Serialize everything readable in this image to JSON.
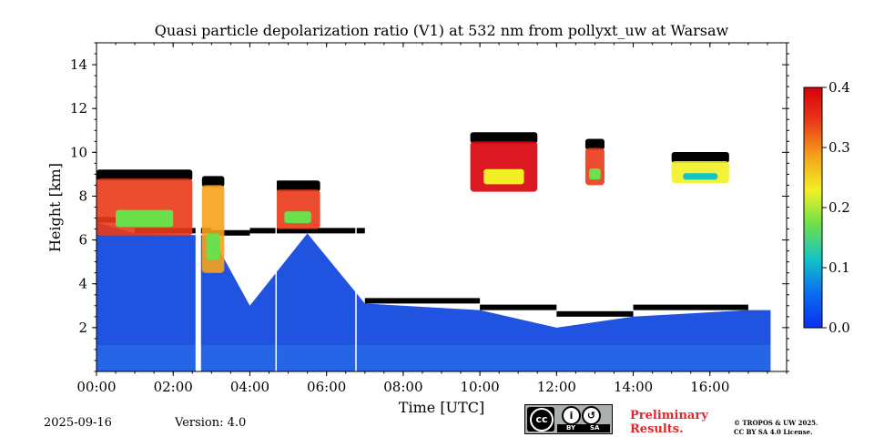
{
  "footer": {
    "date": "2025-09-16",
    "version": "Version: 4.0",
    "license_badge": {
      "by": "BY",
      "sa": "SA"
    },
    "preliminary_line1": "Preliminary",
    "preliminary_line2": "Results.",
    "copyright_line1": "© TROPOS & UW 2025.",
    "copyright_line2": "CC BY SA 4.0 License."
  },
  "chart_data": {
    "type": "heatmap",
    "title": "Quasi particle depolarization ratio (V1) at 532 nm from pollyxt_uw at Warsaw",
    "xlabel": "Time [UTC]",
    "ylabel": "Height [km]",
    "xlim": [
      "00:00",
      "18:00"
    ],
    "ylim": [
      0,
      15
    ],
    "x_ticks": [
      "00:00",
      "02:00",
      "04:00",
      "06:00",
      "08:00",
      "10:00",
      "12:00",
      "14:00",
      "16:00"
    ],
    "y_ticks": [
      2,
      4,
      6,
      8,
      10,
      12,
      14
    ],
    "colorbar": {
      "range": [
        0.0,
        0.4
      ],
      "ticks": [
        "0.0",
        "0.1",
        "0.2",
        "0.3",
        "0.4"
      ],
      "colors": [
        "#0b2ff0",
        "#0a6cf0",
        "#12c4c8",
        "#6be04a",
        "#f2f024",
        "#f5a21c",
        "#ea3a18",
        "#d8000b"
      ]
    },
    "colors": {
      "background_low": "#1f53e0",
      "boundary_layer": "#2b73ea",
      "no_signal": "#ffffff",
      "cloud_masked": "#000000"
    },
    "gaps_utc": [
      "02:35",
      "04:40",
      "06:45"
    ],
    "features": [
      {
        "type": "boundary_layer_top",
        "time": "00:00",
        "height_km": 6.8
      },
      {
        "type": "boundary_layer_top",
        "time": "01:00",
        "height_km": 6.3
      },
      {
        "type": "boundary_layer_top",
        "time": "03:00",
        "height_km": 6.2
      },
      {
        "type": "boundary_layer_top",
        "time": "04:00",
        "height_km": 3.0
      },
      {
        "type": "boundary_layer_top",
        "time": "05:30",
        "height_km": 6.3
      },
      {
        "type": "boundary_layer_top",
        "time": "07:00",
        "height_km": 3.1
      },
      {
        "type": "boundary_layer_top",
        "time": "10:00",
        "height_km": 2.8
      },
      {
        "type": "boundary_layer_top",
        "time": "12:00",
        "height_km": 2.0
      },
      {
        "type": "boundary_layer_top",
        "time": "14:00",
        "height_km": 2.5
      },
      {
        "type": "boundary_layer_top",
        "time": "17:00",
        "height_km": 2.8
      },
      {
        "type": "high_depol_layer",
        "time_start": "00:00",
        "time_end": "02:30",
        "height_km": [
          6.2,
          8.8
        ],
        "value": 0.35
      },
      {
        "type": "high_depol_layer",
        "time_start": "02:45",
        "time_end": "03:20",
        "height_km": [
          4.5,
          8.5
        ],
        "value": 0.3
      },
      {
        "type": "high_depol_layer",
        "time_start": "04:40",
        "time_end": "05:50",
        "height_km": [
          6.5,
          8.3
        ],
        "value": 0.35
      },
      {
        "type": "high_depol_layer",
        "time_start": "09:45",
        "time_end": "11:30",
        "height_km": [
          8.2,
          10.5
        ],
        "value": 0.38
      },
      {
        "type": "high_depol_layer",
        "time_start": "12:45",
        "time_end": "13:15",
        "height_km": [
          8.5,
          10.2
        ],
        "value": 0.35
      },
      {
        "type": "high_depol_layer",
        "time_start": "15:00",
        "time_end": "16:30",
        "height_km": [
          8.6,
          9.6
        ],
        "value": 0.22
      }
    ]
  }
}
